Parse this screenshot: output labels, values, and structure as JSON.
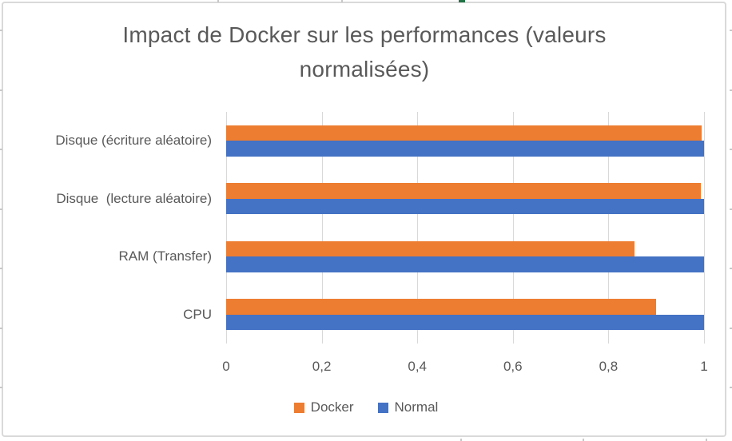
{
  "chart_data": {
    "type": "bar",
    "orientation": "horizontal",
    "title": "Impact de Docker sur les performances (valeurs normalisées)",
    "categories": [
      "Disque (écriture aléatoire)",
      "Disque  (lecture aléatoire)",
      "RAM (Transfer)",
      "CPU"
    ],
    "categories_order": "top-to-bottom",
    "series": [
      {
        "name": "Docker",
        "color": "#ED7D31",
        "values": [
          0.995,
          0.993,
          0.855,
          0.9
        ]
      },
      {
        "name": "Normal",
        "color": "#4472C4",
        "values": [
          1,
          1,
          1,
          1
        ]
      }
    ],
    "xlim": [
      0,
      1
    ],
    "x_ticks": {
      "values": [
        0,
        0.2,
        0.4,
        0.6,
        0.8,
        1
      ],
      "labels": [
        "0",
        "0,2",
        "0,4",
        "0,6",
        "0,8",
        "1"
      ]
    },
    "grid": "vertical-gridlines",
    "legend_position": "bottom"
  },
  "colors": {
    "docker_series": "#ED7D31",
    "normal_series": "#4472C4",
    "gridline": "#D9D9D9",
    "chart_border": "#D9D9D9",
    "text": "#595959",
    "selection_mark_green": "#217346"
  }
}
